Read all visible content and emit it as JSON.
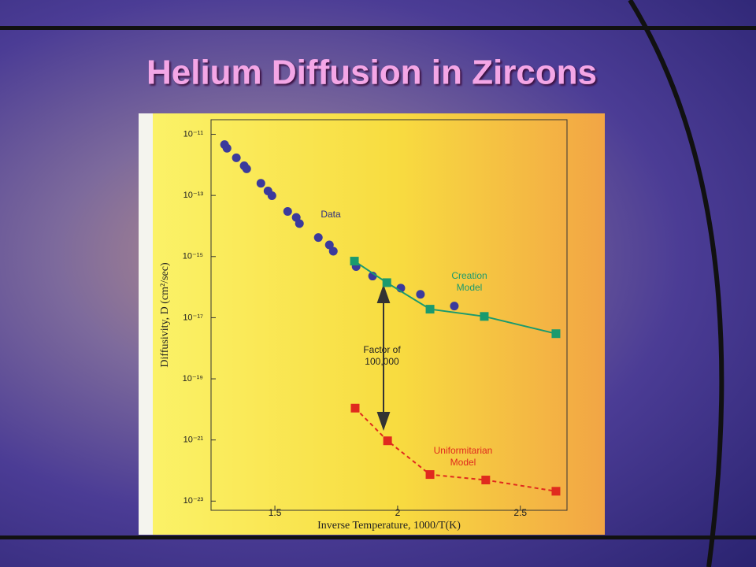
{
  "chart_data": {
    "type": "scatter",
    "title": "Helium Diffusion in Zircons",
    "xlabel": "Inverse Temperature, 1000/T(K)",
    "ylabel": "Diffusivity, D (cm²/sec)",
    "xlim": [
      1.24,
      2.69
    ],
    "xticks": [
      1.5,
      2,
      2.5
    ],
    "ylim": [
      5e-24,
      3e-11
    ],
    "log_y": true,
    "yticks": [
      {
        "value": 1e-11,
        "label": "10⁻¹¹"
      },
      {
        "value": 1e-13,
        "label": "10⁻¹³"
      },
      {
        "value": 1e-15,
        "label": "10⁻¹⁵"
      },
      {
        "value": 1e-17,
        "label": "10⁻¹⁷"
      },
      {
        "value": 1e-19,
        "label": "10⁻¹⁹"
      },
      {
        "value": 1e-21,
        "label": "10⁻²¹"
      },
      {
        "value": 1e-23,
        "label": "10⁻²³"
      }
    ],
    "series": [
      {
        "name": "Data",
        "color": "#3b3a9c",
        "marker": "circle",
        "line": "none",
        "x": [
          1.295,
          1.305,
          1.343,
          1.375,
          1.385,
          1.443,
          1.472,
          1.488,
          1.552,
          1.587,
          1.6,
          1.677,
          1.722,
          1.738,
          1.831,
          1.898,
          2.013,
          2.093,
          2.231
        ],
        "values": [
          4.6e-12,
          3.5e-12,
          1.7e-12,
          9.3e-13,
          7.4e-13,
          2.5e-13,
          1.4e-13,
          9.8e-14,
          3e-14,
          1.9e-14,
          1.2e-14,
          4.2e-15,
          2.4e-15,
          1.5e-15,
          4.7e-16,
          2.3e-16,
          9.3e-17,
          5.8e-17,
          2.4e-17
        ]
      },
      {
        "name": "Creation Model",
        "color": "#1a9a6e",
        "marker": "square",
        "line": "solid",
        "x": [
          1.824,
          1.956,
          2.132,
          2.353,
          2.645
        ],
        "values": [
          7.1e-16,
          1.4e-16,
          1.9e-17,
          1.1e-17,
          3e-18
        ]
      },
      {
        "name": "Uniformitarian Model",
        "color": "#e02a1e",
        "marker": "square",
        "line": "dashed",
        "x": [
          1.827,
          1.959,
          2.132,
          2.359,
          2.645
        ],
        "values": [
          1.1e-20,
          9.4e-22,
          7.4e-23,
          4.9e-23,
          2.1e-23
        ]
      }
    ],
    "annotations": [
      "Factor of 100,000"
    ]
  }
}
